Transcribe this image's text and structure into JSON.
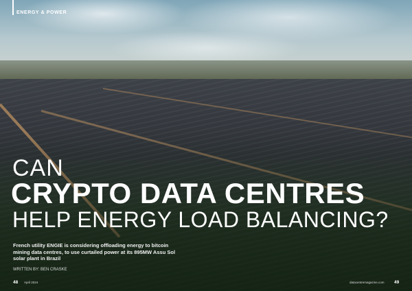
{
  "section": "ENERGY & POWER",
  "headline": {
    "line1": "CAN",
    "line2": "CRYPTO DATA CENTRES",
    "line3": "HELP ENERGY LOAD BALANCING?"
  },
  "standfirst": "French utility ENGIE is considering offloading energy to bitcoin mining data centres, to use curtailed power at its 895MW Assu Sol solar plant in Brazil",
  "byline": "WRITTEN BY: BEN CRASKE",
  "footer": {
    "left_page": "48",
    "date": "April 2024",
    "website": "datacentremagazine.com",
    "right_page": "49"
  }
}
